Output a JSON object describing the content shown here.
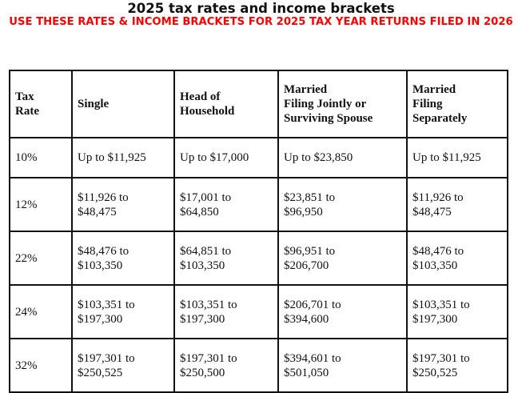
{
  "header": {
    "title": "2025 tax rates and income brackets",
    "subtitle": "USE THESE RATES & INCOME BRACKETS FOR 2025 TAX YEAR RETURNS FILED IN 2026",
    "subtitle_color": "#ff0000"
  },
  "table": {
    "columns": [
      {
        "line1": "Tax",
        "line2": "Rate",
        "line3": ""
      },
      {
        "line1": "Single",
        "line2": "",
        "line3": ""
      },
      {
        "line1": "Head of",
        "line2": "Household",
        "line3": ""
      },
      {
        "line1": "Married",
        "line2": "Filing Jointly or",
        "line3": "Surviving Spouse"
      },
      {
        "line1": "Married",
        "line2": "Filing",
        "line3": "Separately"
      }
    ],
    "rows": [
      {
        "rate": "10%",
        "cells": [
          {
            "l1": "Up to $11,925",
            "l2": ""
          },
          {
            "l1": "Up to $17,000",
            "l2": ""
          },
          {
            "l1": "Up to $23,850",
            "l2": ""
          },
          {
            "l1": "Up to $11,925",
            "l2": ""
          }
        ]
      },
      {
        "rate": "12%",
        "cells": [
          {
            "l1": "$11,926 to",
            "l2": "$48,475"
          },
          {
            "l1": "$17,001 to",
            "l2": "$64,850"
          },
          {
            "l1": "$23,851 to",
            "l2": "$96,950"
          },
          {
            "l1": "$11,926 to",
            "l2": "$48,475"
          }
        ]
      },
      {
        "rate": "22%",
        "cells": [
          {
            "l1": "$48,476 to",
            "l2": "$103,350"
          },
          {
            "l1": "$64,851 to",
            "l2": "$103,350"
          },
          {
            "l1": "$96,951 to",
            "l2": "$206,700"
          },
          {
            "l1": "$48,476 to",
            "l2": "$103,350"
          }
        ]
      },
      {
        "rate": "24%",
        "cells": [
          {
            "l1": "$103,351 to",
            "l2": "$197,300"
          },
          {
            "l1": "$103,351 to",
            "l2": "$197,300"
          },
          {
            "l1": "$206,701 to",
            "l2": "$394,600"
          },
          {
            "l1": "$103,351 to",
            "l2": "$197,300"
          }
        ]
      },
      {
        "rate": "32%",
        "cells": [
          {
            "l1": "$197,301 to",
            "l2": "$250,525"
          },
          {
            "l1": "$197,301 to",
            "l2": "$250,500"
          },
          {
            "l1": "$394,601 to",
            "l2": "$501,050"
          },
          {
            "l1": "$197,301 to",
            "l2": "$250,525"
          }
        ]
      }
    ]
  }
}
